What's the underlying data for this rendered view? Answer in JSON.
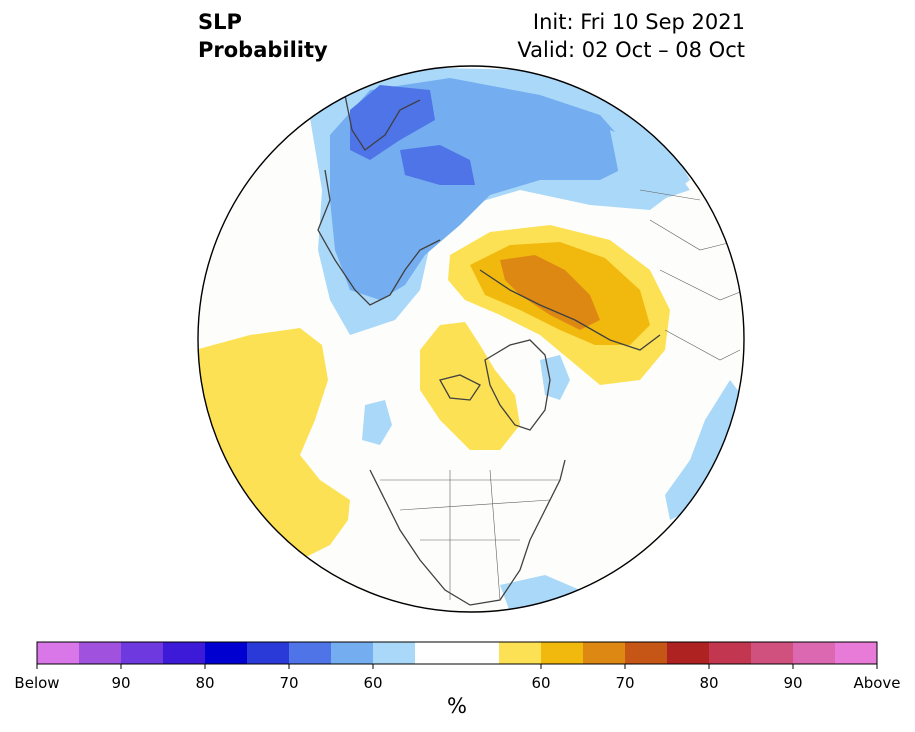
{
  "header": {
    "variable": "SLP",
    "product": "Probability",
    "init": "Init: Fri 10 Sep 2021",
    "valid": "Valid: 02 Oct – 08 Oct"
  },
  "colorbar": {
    "unit": "%",
    "colors": [
      "#d977e8",
      "#a052de",
      "#6e3adf",
      "#3c1ad7",
      "#0000d0",
      "#2a3ad9",
      "#4e74e8",
      "#74aef0",
      "#aad8f8",
      "#ffffff",
      "#ffffff",
      "#fde154",
      "#f1b90d",
      "#de8814",
      "#c65616",
      "#ae2222",
      "#c23650",
      "#d0507e",
      "#dc68b2",
      "#e87ad8"
    ],
    "ticks": [
      {
        "label": "Below"
      },
      {
        "label": "90"
      },
      {
        "label": "80"
      },
      {
        "label": "70"
      },
      {
        "label": "60"
      },
      {
        "label": "60"
      },
      {
        "label": "70"
      },
      {
        "label": "80"
      },
      {
        "label": "90"
      },
      {
        "label": "Above"
      }
    ]
  },
  "map": {
    "projection": "north-polar-stereographic",
    "fill_colors": {
      "below_light": "#aad8f8",
      "below_mid": "#74aef0",
      "below_strong": "#4e74e8",
      "above_light": "#fde154",
      "above_mid": "#f1b90d",
      "above_strong": "#de8814",
      "neutral": "#fdfefb"
    }
  }
}
